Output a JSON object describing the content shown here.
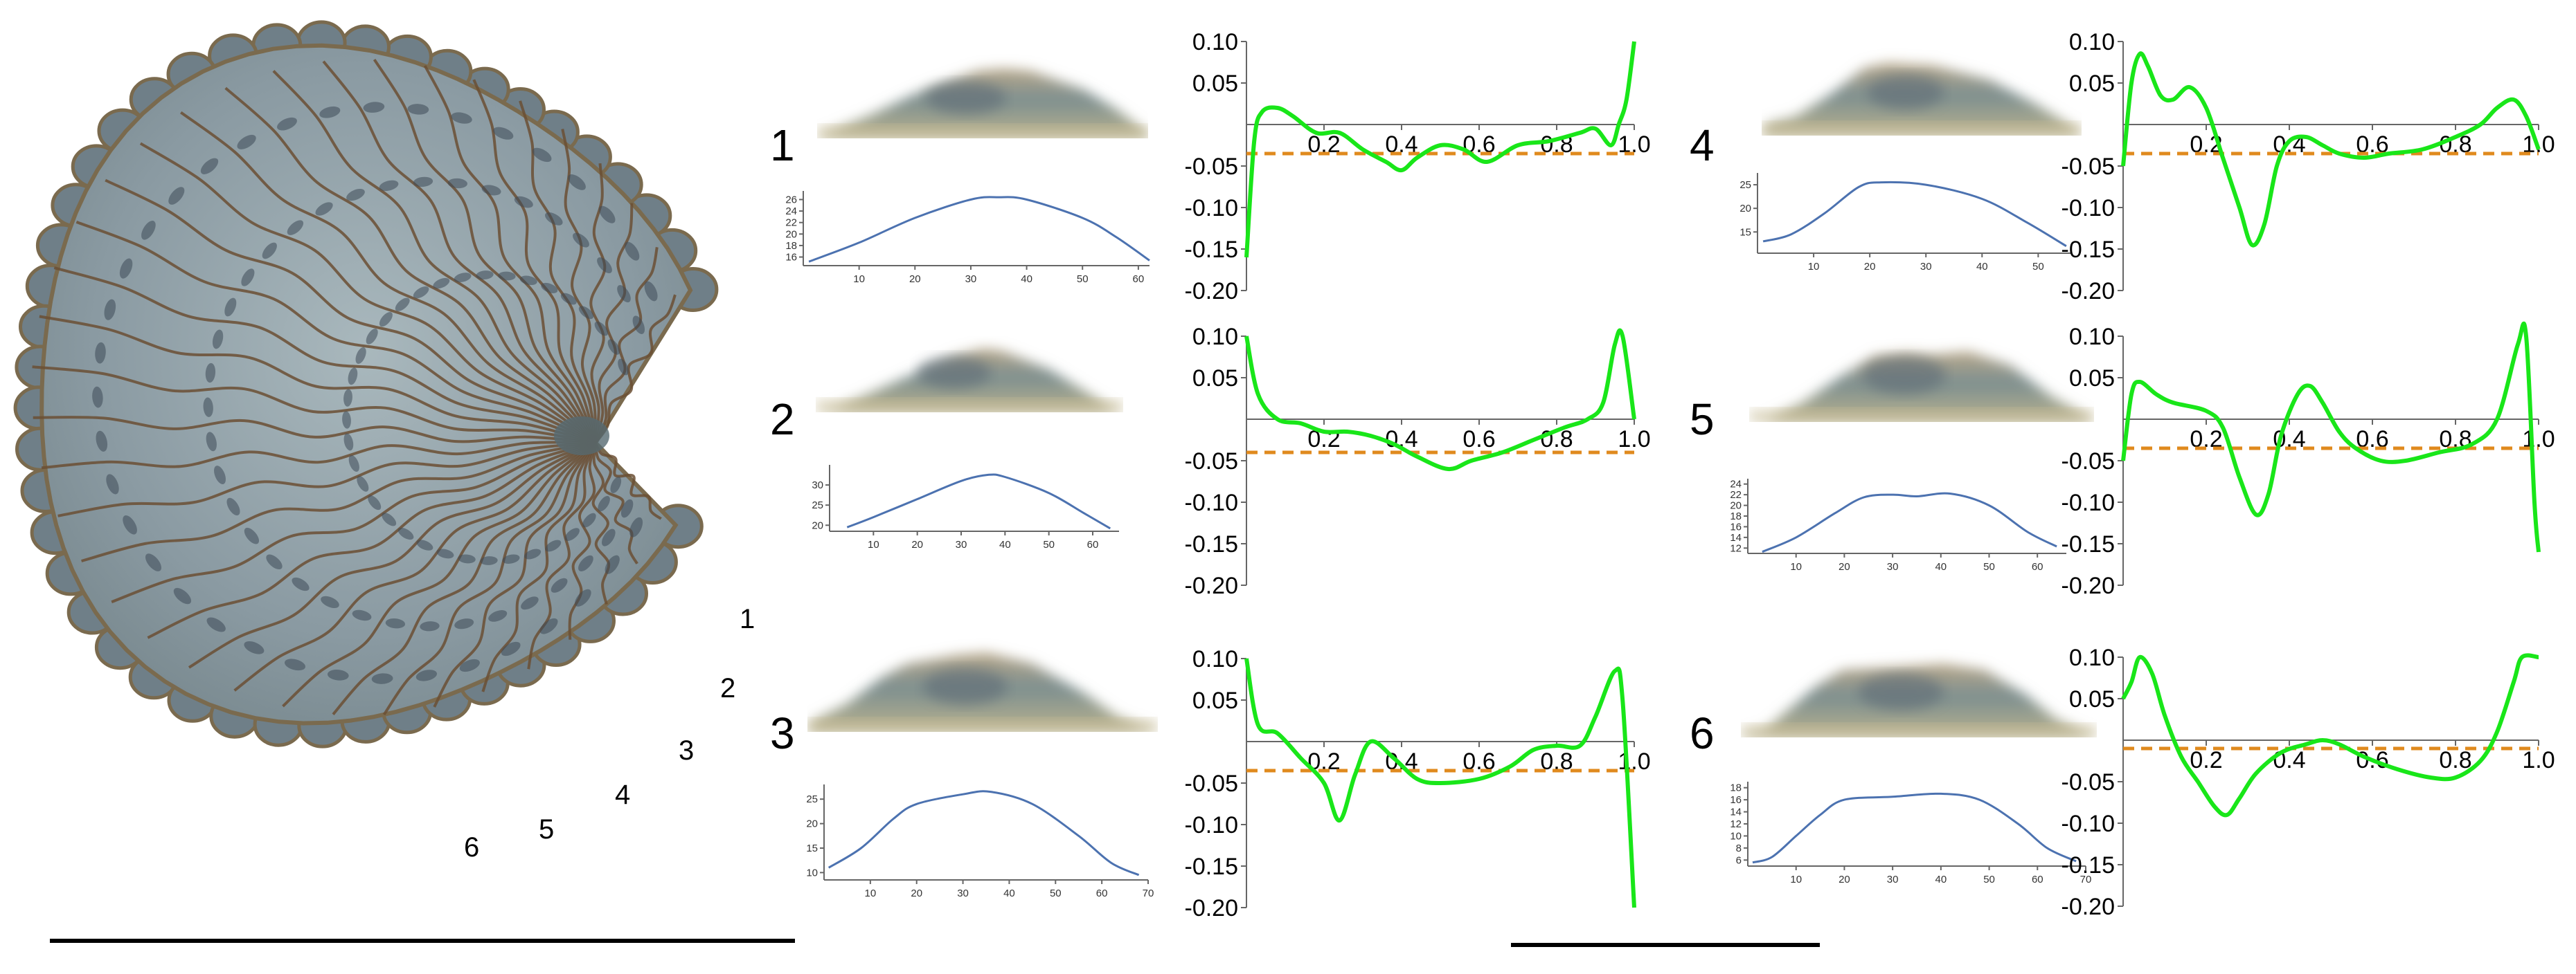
{
  "seed": {
    "colors": {
      "body": "#8a9aa2",
      "body_light": "#a9b8bd",
      "bump": "#6f7f88",
      "rim": "#7a6a4e",
      "lines": "#6b4f34",
      "spots": "#3e4a58"
    },
    "labels": [
      "1",
      "2",
      "3",
      "4",
      "5",
      "6"
    ]
  },
  "panels": [
    {
      "num": "1",
      "small": {
        "xticks": [
          "10",
          "20",
          "30",
          "40",
          "50",
          "60"
        ],
        "yticks": [
          "16",
          "18",
          "20",
          "22",
          "24",
          "26"
        ],
        "xmax": 62,
        "ymin": 14.5,
        "ymax": 27.5,
        "points": [
          [
            1,
            15.2
          ],
          [
            10,
            18.5
          ],
          [
            20,
            22.8
          ],
          [
            30,
            26.0
          ],
          [
            35,
            26.4
          ],
          [
            40,
            26.0
          ],
          [
            50,
            22.8
          ],
          [
            56,
            19.5
          ],
          [
            62,
            15.4
          ]
        ]
      },
      "large": {
        "xticks": [
          "0.2",
          "0.4",
          "0.6",
          "0.8",
          "1.0"
        ],
        "yticks": [
          "0.10",
          "0.05",
          "-0.05",
          "-0.10",
          "-0.15",
          "-0.20"
        ],
        "threshold": -0.035,
        "points": [
          [
            0,
            -0.16
          ],
          [
            0.02,
            -0.02
          ],
          [
            0.04,
            0.015
          ],
          [
            0.08,
            0.02
          ],
          [
            0.12,
            0.01
          ],
          [
            0.18,
            -0.01
          ],
          [
            0.24,
            -0.01
          ],
          [
            0.3,
            -0.03
          ],
          [
            0.36,
            -0.045
          ],
          [
            0.4,
            -0.055
          ],
          [
            0.44,
            -0.04
          ],
          [
            0.5,
            -0.025
          ],
          [
            0.56,
            -0.03
          ],
          [
            0.62,
            -0.045
          ],
          [
            0.7,
            -0.025
          ],
          [
            0.78,
            -0.02
          ],
          [
            0.86,
            -0.01
          ],
          [
            0.9,
            -0.005
          ],
          [
            0.94,
            -0.025
          ],
          [
            0.96,
            0.0
          ],
          [
            0.98,
            0.03
          ],
          [
            1.0,
            0.1
          ]
        ]
      }
    },
    {
      "num": "2",
      "small": {
        "xticks": [
          "10",
          "20",
          "30",
          "40",
          "50",
          "60"
        ],
        "yticks": [
          "20",
          "25",
          "30"
        ],
        "xmax": 66,
        "ymin": 18.5,
        "ymax": 35,
        "points": [
          [
            4,
            19.5
          ],
          [
            10,
            22
          ],
          [
            20,
            26.5
          ],
          [
            30,
            31
          ],
          [
            36,
            32.5
          ],
          [
            40,
            32
          ],
          [
            50,
            28
          ],
          [
            58,
            23
          ],
          [
            64,
            19.2
          ]
        ]
      },
      "large": {
        "xticks": [
          "0.2",
          "0.4",
          "0.6",
          "0.8",
          "1.0"
        ],
        "yticks": [
          "0.10",
          "0.05",
          "-0.05",
          "-0.10",
          "-0.15",
          "-0.20"
        ],
        "threshold": -0.04,
        "points": [
          [
            0,
            0.1
          ],
          [
            0.03,
            0.03
          ],
          [
            0.08,
            0.0
          ],
          [
            0.14,
            -0.005
          ],
          [
            0.2,
            -0.015
          ],
          [
            0.26,
            -0.015
          ],
          [
            0.32,
            -0.02
          ],
          [
            0.38,
            -0.03
          ],
          [
            0.44,
            -0.045
          ],
          [
            0.52,
            -0.06
          ],
          [
            0.58,
            -0.05
          ],
          [
            0.66,
            -0.04
          ],
          [
            0.74,
            -0.025
          ],
          [
            0.82,
            -0.01
          ],
          [
            0.88,
            0.0
          ],
          [
            0.92,
            0.02
          ],
          [
            0.95,
            0.09
          ],
          [
            0.97,
            0.1
          ],
          [
            1.0,
            0.0
          ]
        ]
      }
    },
    {
      "num": "3",
      "small": {
        "xticks": [
          "10",
          "20",
          "30",
          "40",
          "50",
          "60",
          "70"
        ],
        "yticks": [
          "10",
          "15",
          "20",
          "25"
        ],
        "xmax": 70,
        "ymin": 8.5,
        "ymax": 28,
        "points": [
          [
            1,
            11
          ],
          [
            8,
            15
          ],
          [
            15,
            21
          ],
          [
            20,
            24
          ],
          [
            30,
            26
          ],
          [
            36,
            26.5
          ],
          [
            45,
            24
          ],
          [
            55,
            17.5
          ],
          [
            62,
            12
          ],
          [
            68,
            9.5
          ]
        ]
      },
      "large": {
        "xticks": [
          "0.2",
          "0.4",
          "0.6",
          "0.8",
          "1.0"
        ],
        "yticks": [
          "0.10",
          "0.05",
          "-0.05",
          "-0.10",
          "-0.15",
          "-0.20"
        ],
        "threshold": -0.035,
        "points": [
          [
            0,
            0.1
          ],
          [
            0.03,
            0.02
          ],
          [
            0.08,
            0.01
          ],
          [
            0.14,
            -0.02
          ],
          [
            0.2,
            -0.05
          ],
          [
            0.24,
            -0.095
          ],
          [
            0.28,
            -0.04
          ],
          [
            0.32,
            -0.0
          ],
          [
            0.38,
            -0.02
          ],
          [
            0.44,
            -0.045
          ],
          [
            0.5,
            -0.05
          ],
          [
            0.6,
            -0.045
          ],
          [
            0.68,
            -0.03
          ],
          [
            0.74,
            -0.01
          ],
          [
            0.8,
            -0.005
          ],
          [
            0.86,
            -0.005
          ],
          [
            0.9,
            0.03
          ],
          [
            0.95,
            0.085
          ],
          [
            0.97,
            0.05
          ],
          [
            1.0,
            -0.2
          ]
        ]
      }
    },
    {
      "num": "4",
      "small": {
        "xticks": [
          "10",
          "20",
          "30",
          "40",
          "50"
        ],
        "yticks": [
          "15",
          "20",
          "25"
        ],
        "xmax": 56,
        "ymin": 10.5,
        "ymax": 27.5,
        "points": [
          [
            1,
            13
          ],
          [
            6,
            14.5
          ],
          [
            12,
            19
          ],
          [
            18,
            24.5
          ],
          [
            22,
            25.5
          ],
          [
            30,
            25
          ],
          [
            40,
            22
          ],
          [
            48,
            17
          ],
          [
            55,
            12
          ]
        ]
      },
      "large": {
        "xticks": [
          "0.2",
          "0.4",
          "0.6",
          "0.8",
          "1.0"
        ],
        "yticks": [
          "0.10",
          "0.05",
          "-0.05",
          "-0.10",
          "-0.15",
          "-0.20"
        ],
        "threshold": -0.035,
        "points": [
          [
            0,
            -0.05
          ],
          [
            0.02,
            0.05
          ],
          [
            0.04,
            0.085
          ],
          [
            0.06,
            0.07
          ],
          [
            0.09,
            0.035
          ],
          [
            0.12,
            0.03
          ],
          [
            0.16,
            0.045
          ],
          [
            0.2,
            0.02
          ],
          [
            0.24,
            -0.04
          ],
          [
            0.28,
            -0.1
          ],
          [
            0.31,
            -0.145
          ],
          [
            0.34,
            -0.12
          ],
          [
            0.37,
            -0.05
          ],
          [
            0.4,
            -0.02
          ],
          [
            0.44,
            -0.015
          ],
          [
            0.48,
            -0.025
          ],
          [
            0.52,
            -0.035
          ],
          [
            0.58,
            -0.04
          ],
          [
            0.64,
            -0.035
          ],
          [
            0.72,
            -0.03
          ],
          [
            0.8,
            -0.015
          ],
          [
            0.86,
            0.0
          ],
          [
            0.9,
            0.02
          ],
          [
            0.94,
            0.03
          ],
          [
            0.97,
            0.01
          ],
          [
            1.0,
            -0.03
          ]
        ]
      }
    },
    {
      "num": "5",
      "small": {
        "xticks": [
          "10",
          "20",
          "30",
          "40",
          "50",
          "60"
        ],
        "yticks": [
          "12",
          "14",
          "16",
          "18",
          "20",
          "22",
          "24"
        ],
        "xmax": 66,
        "ymin": 11,
        "ymax": 25,
        "points": [
          [
            3,
            11.3
          ],
          [
            10,
            14
          ],
          [
            18,
            18.5
          ],
          [
            24,
            21.5
          ],
          [
            30,
            22
          ],
          [
            35,
            21.7
          ],
          [
            42,
            22.2
          ],
          [
            50,
            20
          ],
          [
            58,
            15
          ],
          [
            64,
            12.3
          ]
        ]
      },
      "large": {
        "xticks": [
          "0.2",
          "0.4",
          "0.6",
          "0.8",
          "1.0"
        ],
        "yticks": [
          "0.10",
          "0.05",
          "-0.05",
          "-0.10",
          "-0.15",
          "-0.20"
        ],
        "threshold": -0.035,
        "points": [
          [
            0,
            -0.05
          ],
          [
            0.02,
            0.03
          ],
          [
            0.04,
            0.045
          ],
          [
            0.08,
            0.03
          ],
          [
            0.12,
            0.02
          ],
          [
            0.2,
            0.01
          ],
          [
            0.24,
            -0.01
          ],
          [
            0.28,
            -0.07
          ],
          [
            0.32,
            -0.115
          ],
          [
            0.35,
            -0.09
          ],
          [
            0.38,
            -0.02
          ],
          [
            0.42,
            0.03
          ],
          [
            0.45,
            0.04
          ],
          [
            0.48,
            0.02
          ],
          [
            0.52,
            -0.015
          ],
          [
            0.56,
            -0.035
          ],
          [
            0.62,
            -0.05
          ],
          [
            0.68,
            -0.05
          ],
          [
            0.76,
            -0.04
          ],
          [
            0.84,
            -0.03
          ],
          [
            0.9,
            0.0
          ],
          [
            0.95,
            0.09
          ],
          [
            0.97,
            0.1
          ],
          [
            0.99,
            -0.1
          ],
          [
            1.0,
            -0.16
          ]
        ]
      }
    },
    {
      "num": "6",
      "small": {
        "xticks": [
          "10",
          "20",
          "30",
          "40",
          "50",
          "60",
          "70"
        ],
        "yticks": [
          "6",
          "8",
          "10",
          "12",
          "14",
          "16",
          "18"
        ],
        "xmax": 70,
        "ymin": 5,
        "ymax": 19,
        "points": [
          [
            1,
            5.6
          ],
          [
            5,
            6.5
          ],
          [
            10,
            10
          ],
          [
            15,
            13.5
          ],
          [
            20,
            16
          ],
          [
            30,
            16.5
          ],
          [
            40,
            17
          ],
          [
            48,
            16
          ],
          [
            56,
            12
          ],
          [
            62,
            8
          ],
          [
            68,
            5.8
          ]
        ]
      },
      "large": {
        "xticks": [
          "0.2",
          "0.4",
          "0.6",
          "0.8",
          "1.0"
        ],
        "yticks": [
          "0.10",
          "0.05",
          "-0.05",
          "-0.10",
          "-0.15",
          "-0.20"
        ],
        "threshold": -0.01,
        "points": [
          [
            0,
            0.05
          ],
          [
            0.02,
            0.07
          ],
          [
            0.04,
            0.1
          ],
          [
            0.07,
            0.08
          ],
          [
            0.1,
            0.03
          ],
          [
            0.14,
            -0.02
          ],
          [
            0.18,
            -0.05
          ],
          [
            0.22,
            -0.08
          ],
          [
            0.25,
            -0.09
          ],
          [
            0.28,
            -0.07
          ],
          [
            0.32,
            -0.04
          ],
          [
            0.38,
            -0.015
          ],
          [
            0.44,
            -0.005
          ],
          [
            0.48,
            0.0
          ],
          [
            0.52,
            -0.005
          ],
          [
            0.58,
            -0.02
          ],
          [
            0.66,
            -0.035
          ],
          [
            0.74,
            -0.045
          ],
          [
            0.8,
            -0.045
          ],
          [
            0.86,
            -0.025
          ],
          [
            0.9,
            0.01
          ],
          [
            0.94,
            0.07
          ],
          [
            0.96,
            0.1
          ],
          [
            1.0,
            0.1
          ]
        ]
      }
    }
  ],
  "scale_bars": [
    "left",
    "right"
  ],
  "colors": {
    "small_line": "#4c72b0",
    "large_line": "#19e619",
    "threshold": "#e08a1e",
    "axis": "#666666",
    "text": "#000000"
  }
}
